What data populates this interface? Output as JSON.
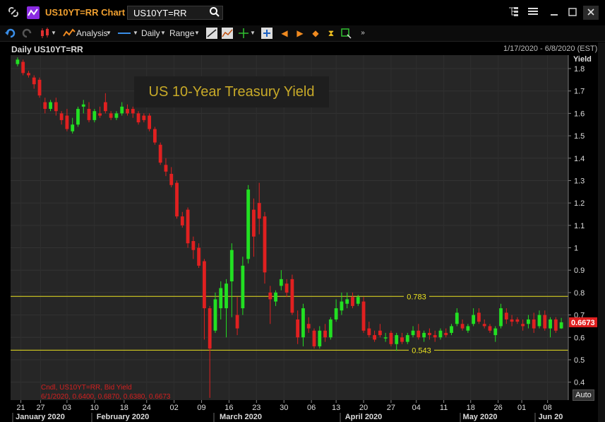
{
  "window": {
    "title": "US10YT=RR Chart",
    "ticker_input": "US10YT=RR"
  },
  "toolbar": {
    "analysis_label": "Analysis",
    "interval_label": "Daily",
    "range_label": "Range"
  },
  "chart_header": {
    "left": "Daily US10YT=RR",
    "right": "1/17/2020 - 6/8/2020 (EST)"
  },
  "chart_title": "US 10-Year Treasury Yield",
  "y_axis": {
    "label": "Yield",
    "ticks": [
      "1.8",
      "1.7",
      "1.6",
      "1.5",
      "1.4",
      "1.3",
      "1.2",
      "1.1",
      "1",
      "0.9",
      "0.8",
      "0.7",
      "0.6",
      "0.5",
      "0.4"
    ]
  },
  "auto_button": "Auto",
  "legend": {
    "line1": "Cndl, US10YT=RR, Bid Yield",
    "line2": "6/1/2020, 0.6400, 0.6870, 0.6380, 0.6673"
  },
  "chart_data": {
    "type": "candlestick",
    "title": "US 10-Year Treasury Yield",
    "ylabel": "Yield",
    "ylim": [
      0.32,
      1.86
    ],
    "last_value_label": "0.6673",
    "reference_lines": [
      {
        "value": 0.783,
        "label": "0.783",
        "color": "#e8e020"
      },
      {
        "value": 0.543,
        "label": "0.543",
        "color": "#e8e020"
      }
    ],
    "x_tick_labels": [
      "21",
      "27",
      "03",
      "10",
      "18",
      "24",
      "02",
      "09",
      "16",
      "23",
      "30",
      "06",
      "13",
      "20",
      "27",
      "04",
      "11",
      "18",
      "26",
      "01",
      "08"
    ],
    "x_month_labels": [
      "January 2020",
      "February 2020",
      "March 2020",
      "April 2020",
      "May 2020",
      "Jun 20"
    ],
    "candles": [
      {
        "o": 1.82,
        "h": 1.85,
        "l": 1.81,
        "c": 1.84
      },
      {
        "o": 1.83,
        "h": 1.84,
        "l": 1.77,
        "c": 1.78
      },
      {
        "o": 1.78,
        "h": 1.79,
        "l": 1.76,
        "c": 1.77
      },
      {
        "o": 1.76,
        "h": 1.77,
        "l": 1.71,
        "c": 1.73
      },
      {
        "o": 1.75,
        "h": 1.76,
        "l": 1.67,
        "c": 1.68
      },
      {
        "o": 1.65,
        "h": 1.67,
        "l": 1.6,
        "c": 1.62
      },
      {
        "o": 1.62,
        "h": 1.66,
        "l": 1.61,
        "c": 1.65
      },
      {
        "o": 1.65,
        "h": 1.67,
        "l": 1.59,
        "c": 1.61
      },
      {
        "o": 1.6,
        "h": 1.61,
        "l": 1.55,
        "c": 1.57
      },
      {
        "o": 1.59,
        "h": 1.62,
        "l": 1.52,
        "c": 1.53
      },
      {
        "o": 1.52,
        "h": 1.58,
        "l": 1.51,
        "c": 1.55
      },
      {
        "o": 1.55,
        "h": 1.63,
        "l": 1.54,
        "c": 1.62
      },
      {
        "o": 1.63,
        "h": 1.66,
        "l": 1.6,
        "c": 1.64
      },
      {
        "o": 1.62,
        "h": 1.65,
        "l": 1.56,
        "c": 1.57
      },
      {
        "o": 1.57,
        "h": 1.62,
        "l": 1.56,
        "c": 1.61
      },
      {
        "o": 1.6,
        "h": 1.63,
        "l": 1.58,
        "c": 1.59
      },
      {
        "o": 1.65,
        "h": 1.69,
        "l": 1.6,
        "c": 1.61
      },
      {
        "o": 1.6,
        "h": 1.61,
        "l": 1.57,
        "c": 1.58
      },
      {
        "o": 1.58,
        "h": 1.61,
        "l": 1.57,
        "c": 1.6
      },
      {
        "o": 1.6,
        "h": 1.65,
        "l": 1.59,
        "c": 1.63
      },
      {
        "o": 1.62,
        "h": 1.64,
        "l": 1.59,
        "c": 1.6
      },
      {
        "o": 1.62,
        "h": 1.63,
        "l": 1.58,
        "c": 1.6
      },
      {
        "o": 1.6,
        "h": 1.61,
        "l": 1.55,
        "c": 1.56
      },
      {
        "o": 1.59,
        "h": 1.6,
        "l": 1.56,
        "c": 1.57
      },
      {
        "o": 1.59,
        "h": 1.6,
        "l": 1.52,
        "c": 1.53
      },
      {
        "o": 1.53,
        "h": 1.54,
        "l": 1.46,
        "c": 1.47
      },
      {
        "o": 1.46,
        "h": 1.47,
        "l": 1.37,
        "c": 1.38
      },
      {
        "o": 1.37,
        "h": 1.4,
        "l": 1.32,
        "c": 1.34
      },
      {
        "o": 1.33,
        "h": 1.36,
        "l": 1.27,
        "c": 1.28
      },
      {
        "o": 1.29,
        "h": 1.3,
        "l": 1.13,
        "c": 1.14
      },
      {
        "o": 1.14,
        "h": 1.16,
        "l": 1.09,
        "c": 1.1
      },
      {
        "o": 1.17,
        "h": 1.18,
        "l": 1.0,
        "c": 1.02
      },
      {
        "o": 1.03,
        "h": 1.05,
        "l": 0.95,
        "c": 0.99
      },
      {
        "o": 1.0,
        "h": 1.02,
        "l": 0.91,
        "c": 0.92
      },
      {
        "o": 0.94,
        "h": 0.95,
        "l": 0.59,
        "c": 0.73
      },
      {
        "o": 0.73,
        "h": 0.74,
        "l": 0.33,
        "c": 0.55
      },
      {
        "o": 0.63,
        "h": 0.8,
        "l": 0.62,
        "c": 0.77
      },
      {
        "o": 0.73,
        "h": 0.85,
        "l": 0.68,
        "c": 0.82
      },
      {
        "o": 0.73,
        "h": 0.86,
        "l": 0.6,
        "c": 0.84
      },
      {
        "o": 0.85,
        "h": 1.02,
        "l": 0.69,
        "c": 0.99
      },
      {
        "o": 0.7,
        "h": 0.78,
        "l": 0.61,
        "c": 0.64
      },
      {
        "o": 0.73,
        "h": 0.96,
        "l": 0.7,
        "c": 0.92
      },
      {
        "o": 0.95,
        "h": 1.28,
        "l": 0.93,
        "c": 1.26
      },
      {
        "o": 1.17,
        "h": 1.22,
        "l": 0.96,
        "c": 1.05
      },
      {
        "o": 1.2,
        "h": 1.29,
        "l": 1.06,
        "c": 1.13
      },
      {
        "o": 1.14,
        "h": 1.16,
        "l": 0.84,
        "c": 0.89
      },
      {
        "o": 0.8,
        "h": 0.83,
        "l": 0.66,
        "c": 0.77
      },
      {
        "o": 0.76,
        "h": 0.81,
        "l": 0.74,
        "c": 0.8
      },
      {
        "o": 0.83,
        "h": 0.9,
        "l": 0.81,
        "c": 0.86
      },
      {
        "o": 0.84,
        "h": 0.86,
        "l": 0.78,
        "c": 0.8
      },
      {
        "o": 0.86,
        "h": 0.88,
        "l": 0.7,
        "c": 0.71
      },
      {
        "o": 0.68,
        "h": 0.72,
        "l": 0.57,
        "c": 0.6
      },
      {
        "o": 0.6,
        "h": 0.75,
        "l": 0.56,
        "c": 0.73
      },
      {
        "o": 0.66,
        "h": 0.69,
        "l": 0.62,
        "c": 0.64
      },
      {
        "o": 0.63,
        "h": 0.64,
        "l": 0.55,
        "c": 0.56
      },
      {
        "o": 0.56,
        "h": 0.65,
        "l": 0.55,
        "c": 0.63
      },
      {
        "o": 0.63,
        "h": 0.66,
        "l": 0.58,
        "c": 0.6
      },
      {
        "o": 0.6,
        "h": 0.69,
        "l": 0.59,
        "c": 0.68
      },
      {
        "o": 0.68,
        "h": 0.77,
        "l": 0.67,
        "c": 0.73
      },
      {
        "o": 0.72,
        "h": 0.8,
        "l": 0.7,
        "c": 0.76
      },
      {
        "o": 0.75,
        "h": 0.8,
        "l": 0.73,
        "c": 0.77
      },
      {
        "o": 0.78,
        "h": 0.8,
        "l": 0.73,
        "c": 0.74
      },
      {
        "o": 0.75,
        "h": 0.79,
        "l": 0.74,
        "c": 0.78
      },
      {
        "o": 0.76,
        "h": 0.78,
        "l": 0.62,
        "c": 0.63
      },
      {
        "o": 0.64,
        "h": 0.67,
        "l": 0.6,
        "c": 0.61
      },
      {
        "o": 0.61,
        "h": 0.63,
        "l": 0.58,
        "c": 0.59
      },
      {
        "o": 0.63,
        "h": 0.66,
        "l": 0.6,
        "c": 0.61
      },
      {
        "o": 0.6,
        "h": 0.62,
        "l": 0.58,
        "c": 0.6
      },
      {
        "o": 0.62,
        "h": 0.63,
        "l": 0.56,
        "c": 0.57
      },
      {
        "o": 0.57,
        "h": 0.62,
        "l": 0.54,
        "c": 0.61
      },
      {
        "o": 0.6,
        "h": 0.62,
        "l": 0.57,
        "c": 0.58
      },
      {
        "o": 0.58,
        "h": 0.62,
        "l": 0.57,
        "c": 0.61
      },
      {
        "o": 0.61,
        "h": 0.65,
        "l": 0.6,
        "c": 0.63
      },
      {
        "o": 0.63,
        "h": 0.66,
        "l": 0.59,
        "c": 0.6
      },
      {
        "o": 0.6,
        "h": 0.63,
        "l": 0.58,
        "c": 0.62
      },
      {
        "o": 0.62,
        "h": 0.64,
        "l": 0.59,
        "c": 0.61
      },
      {
        "o": 0.61,
        "h": 0.63,
        "l": 0.58,
        "c": 0.6
      },
      {
        "o": 0.6,
        "h": 0.64,
        "l": 0.59,
        "c": 0.63
      },
      {
        "o": 0.62,
        "h": 0.64,
        "l": 0.6,
        "c": 0.61
      },
      {
        "o": 0.62,
        "h": 0.66,
        "l": 0.61,
        "c": 0.65
      },
      {
        "o": 0.66,
        "h": 0.73,
        "l": 0.65,
        "c": 0.71
      },
      {
        "o": 0.66,
        "h": 0.68,
        "l": 0.63,
        "c": 0.64
      },
      {
        "o": 0.63,
        "h": 0.66,
        "l": 0.62,
        "c": 0.65
      },
      {
        "o": 0.66,
        "h": 0.73,
        "l": 0.65,
        "c": 0.7
      },
      {
        "o": 0.71,
        "h": 0.73,
        "l": 0.66,
        "c": 0.67
      },
      {
        "o": 0.66,
        "h": 0.68,
        "l": 0.64,
        "c": 0.65
      },
      {
        "o": 0.65,
        "h": 0.66,
        "l": 0.62,
        "c": 0.63
      },
      {
        "o": 0.61,
        "h": 0.65,
        "l": 0.58,
        "c": 0.64
      },
      {
        "o": 0.65,
        "h": 0.75,
        "l": 0.64,
        "c": 0.73
      },
      {
        "o": 0.71,
        "h": 0.73,
        "l": 0.66,
        "c": 0.68
      },
      {
        "o": 0.68,
        "h": 0.7,
        "l": 0.65,
        "c": 0.67
      },
      {
        "o": 0.68,
        "h": 0.69,
        "l": 0.66,
        "c": 0.67
      },
      {
        "o": 0.66,
        "h": 0.68,
        "l": 0.63,
        "c": 0.65
      },
      {
        "o": 0.66,
        "h": 0.7,
        "l": 0.64,
        "c": 0.68
      },
      {
        "o": 0.68,
        "h": 0.71,
        "l": 0.62,
        "c": 0.64
      },
      {
        "o": 0.65,
        "h": 0.72,
        "l": 0.64,
        "c": 0.7
      },
      {
        "o": 0.7,
        "h": 0.72,
        "l": 0.63,
        "c": 0.64
      },
      {
        "o": 0.64,
        "h": 0.69,
        "l": 0.6,
        "c": 0.68
      },
      {
        "o": 0.68,
        "h": 0.69,
        "l": 0.62,
        "c": 0.63
      },
      {
        "o": 0.64,
        "h": 0.687,
        "l": 0.638,
        "c": 0.6673
      }
    ]
  }
}
